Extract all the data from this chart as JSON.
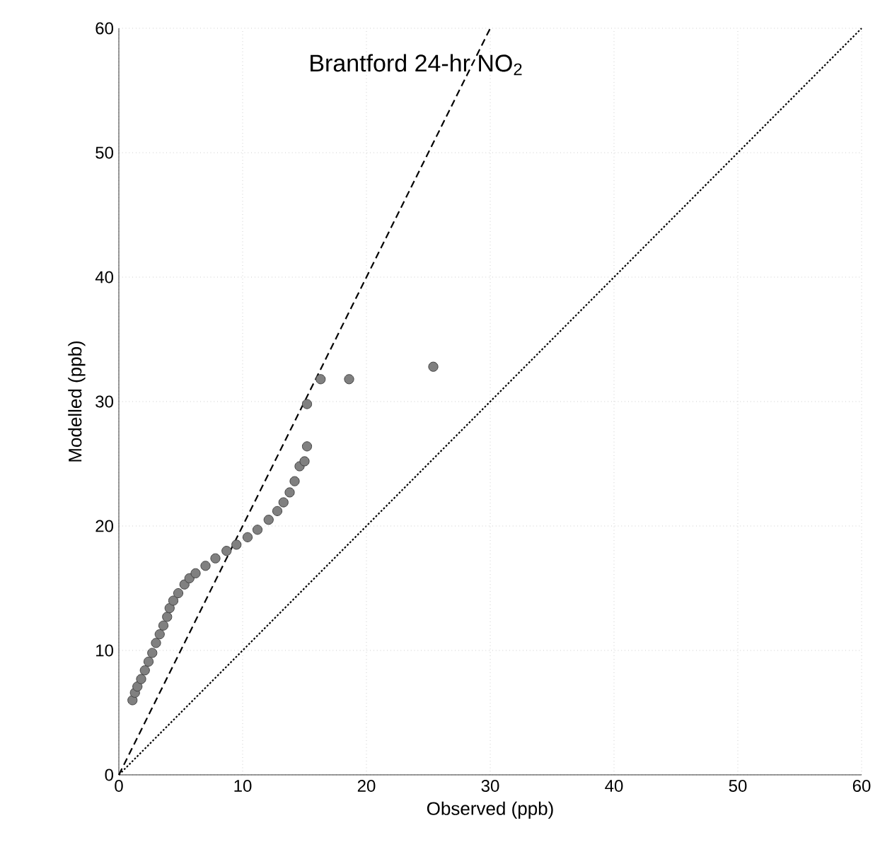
{
  "chart_data": {
    "type": "scatter",
    "title": "Brantford 24-hr NO$_{2}$",
    "xlabel": "Observed (ppb)",
    "ylabel": "Modelled (ppb)",
    "xlim": [
      0,
      60
    ],
    "ylim": [
      0,
      60
    ],
    "xticks": [
      0,
      10,
      20,
      30,
      40,
      50,
      60
    ],
    "yticks": [
      0,
      10,
      20,
      30,
      40,
      50,
      60
    ],
    "grid": true,
    "series": [
      {
        "color": "#808080",
        "marker": "circle",
        "x": [
          1.1,
          1.3,
          1.5,
          1.8,
          2.1,
          2.4,
          2.7,
          3.0,
          3.3,
          3.6,
          3.9,
          4.1,
          4.4,
          4.8,
          5.3,
          5.7,
          6.2,
          7.0,
          7.8,
          8.7,
          9.5,
          10.4,
          11.2,
          12.1,
          12.8,
          13.3,
          13.8,
          14.2,
          14.6,
          15.0,
          15.2,
          15.2,
          16.3,
          18.6,
          25.4
        ],
        "values": [
          6.0,
          6.6,
          7.1,
          7.7,
          8.4,
          9.1,
          9.8,
          10.6,
          11.3,
          12.0,
          12.7,
          13.4,
          14.0,
          14.6,
          15.3,
          15.8,
          16.2,
          16.8,
          17.4,
          18.0,
          18.5,
          19.1,
          19.7,
          20.5,
          21.2,
          21.9,
          22.7,
          23.6,
          24.8,
          25.2,
          26.4,
          29.8,
          31.8,
          31.8,
          32.8
        ]
      },
      {
        "type": "line",
        "color": "#000000",
        "line_style": "dashed",
        "marker": "none",
        "x": [
          0,
          30
        ],
        "values": [
          0,
          60
        ]
      },
      {
        "type": "line",
        "color": "#000000",
        "line_style": "dotted",
        "marker": "none",
        "x": [
          0,
          60
        ],
        "values": [
          0,
          60
        ]
      }
    ]
  }
}
